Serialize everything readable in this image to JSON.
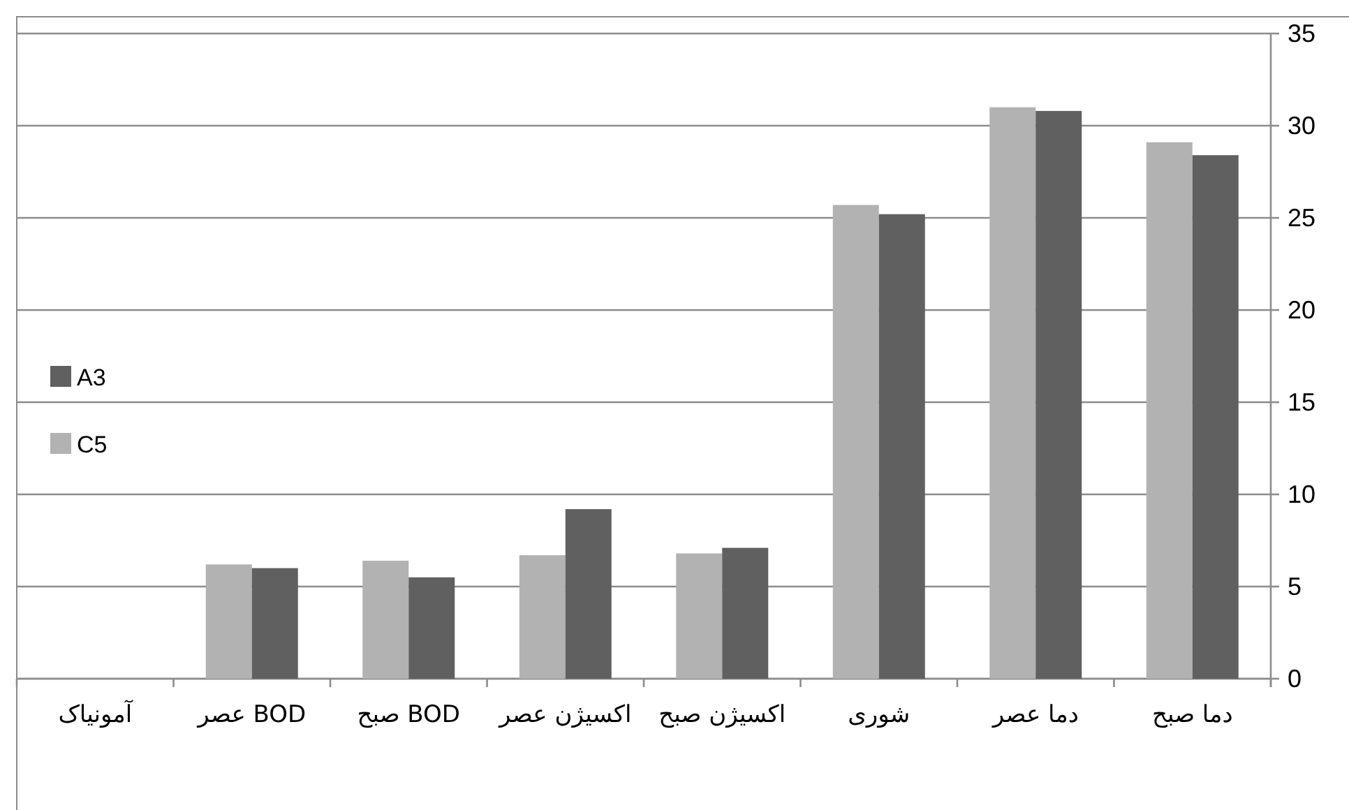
{
  "chart_data": {
    "type": "bar",
    "categories": [
      "آمونیاک",
      "BOD عصر",
      "BOD صبح",
      "اکسیژن عصر",
      "اکسیژن صبح",
      "شوری",
      "دما عصر",
      "دما صبح"
    ],
    "series": [
      {
        "name": "C5",
        "color": "#b2b2b2",
        "values": [
          null,
          6.2,
          6.4,
          6.7,
          6.8,
          25.7,
          31.0,
          29.1
        ]
      },
      {
        "name": "A3",
        "color": "#606060",
        "values": [
          null,
          6.0,
          5.5,
          9.2,
          7.1,
          25.2,
          30.8,
          28.4
        ]
      }
    ],
    "ylim": [
      0,
      35
    ],
    "yticks": [
      0,
      5,
      10,
      15,
      20,
      25,
      30,
      35
    ],
    "grid": "y",
    "legend": "left"
  }
}
